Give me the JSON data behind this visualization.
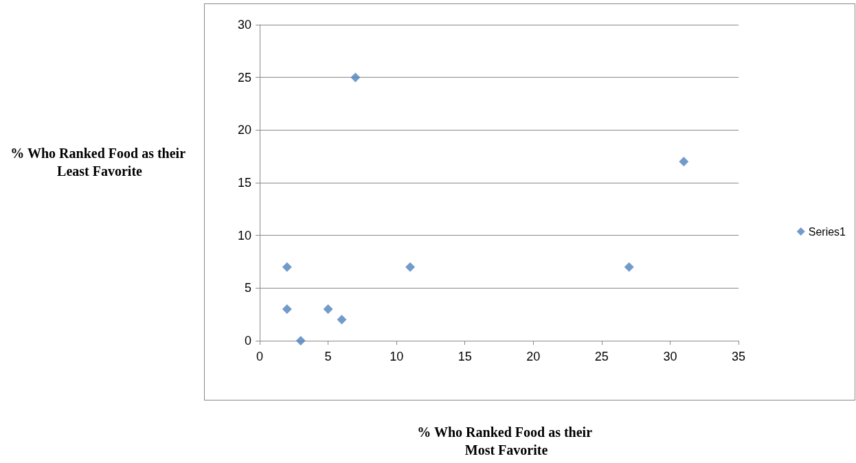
{
  "chart_data": {
    "type": "scatter",
    "xlabel": "% Who Ranked Food as their Most Favorite",
    "ylabel": "% Who Ranked Food as their Least Favorite",
    "series": [
      {
        "name": "Series1",
        "color": "#4f81bd",
        "x": [
          2,
          2,
          3,
          5,
          6,
          7,
          11,
          27,
          31
        ],
        "values": [
          7,
          3,
          0,
          3,
          2,
          25,
          7,
          7,
          17
        ]
      }
    ],
    "xlim": [
      0,
      35
    ],
    "xticks": [
      0,
      5,
      10,
      15,
      20,
      25,
      30,
      35
    ],
    "ylim": [
      0,
      30
    ],
    "yticks": [
      0,
      5,
      10,
      15,
      20,
      25,
      30
    ],
    "grid": "y",
    "legend": "right",
    "marker": "diamond"
  }
}
